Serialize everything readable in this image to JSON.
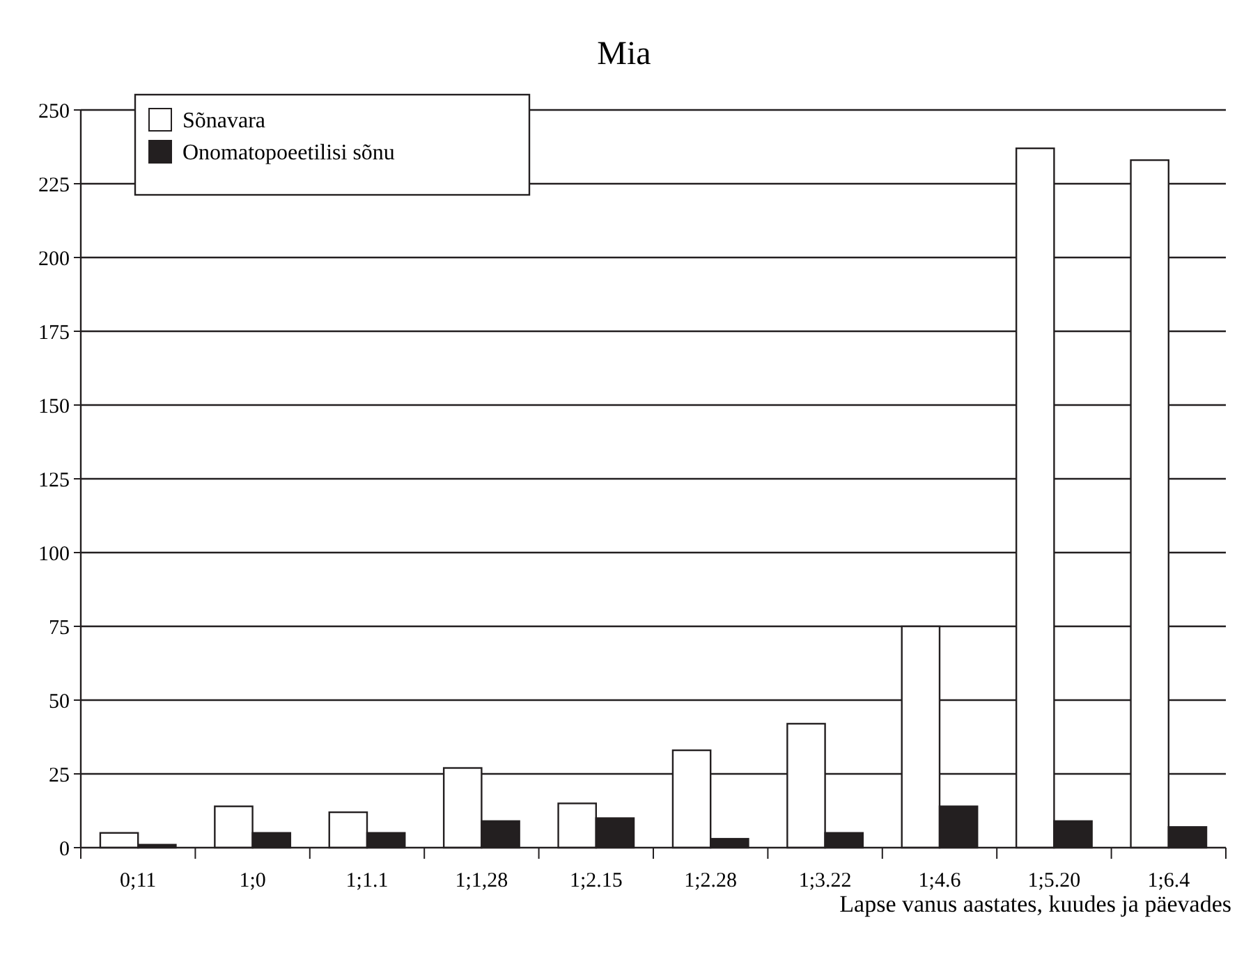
{
  "chart_data": {
    "type": "bar",
    "title": "Mia",
    "xlabel": "Lapse vanus aastates, kuudes ja päevades",
    "categories": [
      "0;11",
      "1;0",
      "1;1.1",
      "1;1,28",
      "1;2.15",
      "1;2.28",
      "1;3.22",
      "1;4.6",
      "1;5.20",
      "1;6.4"
    ],
    "series": [
      {
        "name": "Sõnavara",
        "color": "#ffffff",
        "values": [
          5,
          14,
          12,
          27,
          15,
          33,
          42,
          75,
          237,
          233
        ]
      },
      {
        "name": "Onomatopoeetilisi sõnu",
        "color": "#231f20",
        "values": [
          1,
          5,
          5,
          9,
          10,
          3,
          5,
          14,
          9,
          7
        ]
      }
    ],
    "ylim": [
      0,
      250
    ],
    "yticks": [
      0,
      25,
      50,
      75,
      100,
      125,
      150,
      175,
      200,
      225,
      250
    ],
    "grid": "y",
    "legend": "top left"
  }
}
